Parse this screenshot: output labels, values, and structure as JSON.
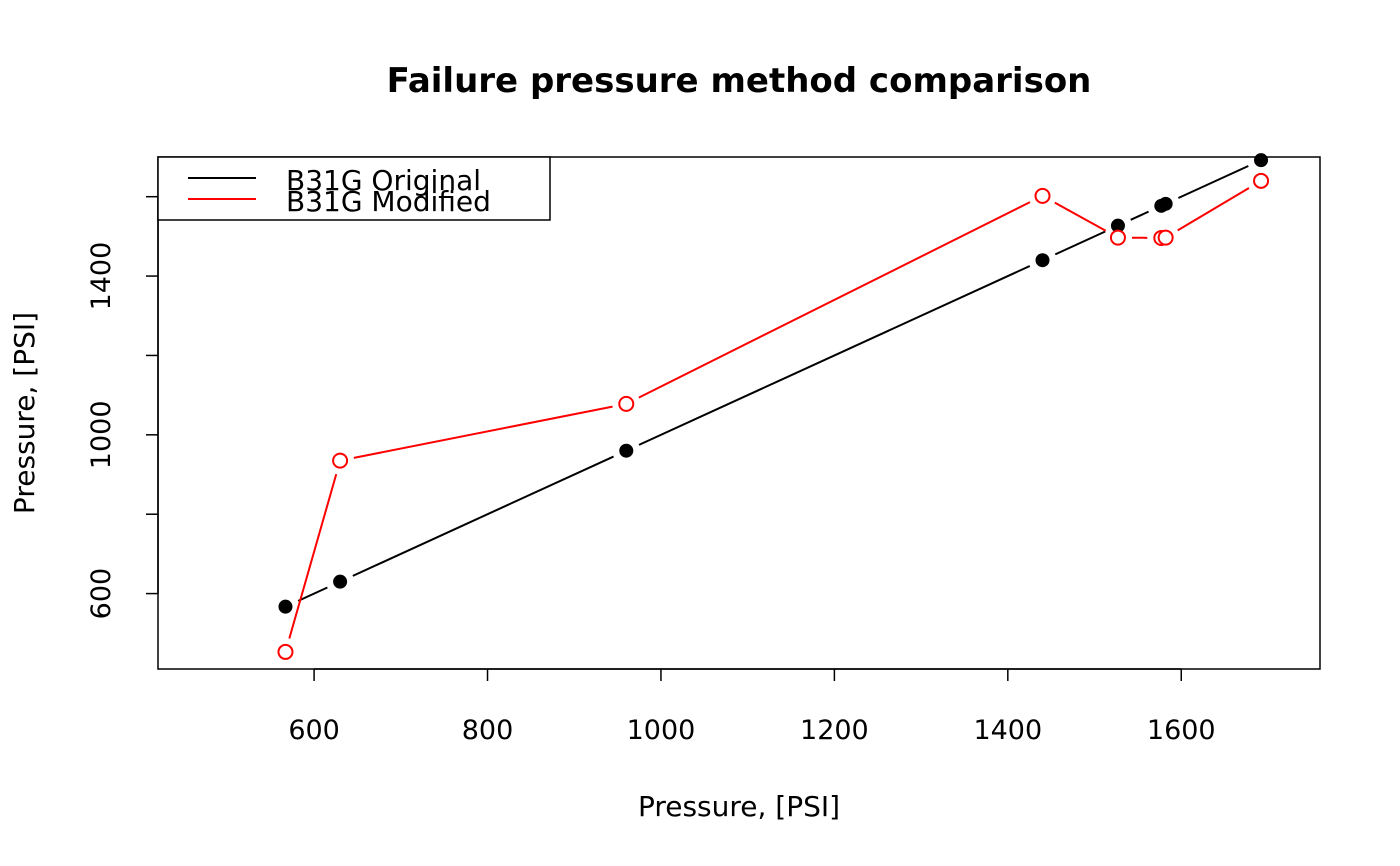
{
  "chart_data": {
    "type": "line",
    "title": "Failure pressure method comparison",
    "xlabel": "Pressure, [PSI]",
    "ylabel": "Pressure, [PSI]",
    "xlim": [
      420,
      1760
    ],
    "ylim": [
      410,
      1700
    ],
    "x_ticks": [
      600,
      800,
      1000,
      1200,
      1400,
      1600
    ],
    "y_ticks": [
      600,
      800,
      1000,
      1200,
      1400,
      1600
    ],
    "y_tick_labels_shown": [
      600,
      1000,
      1400
    ],
    "grid": false,
    "legend_position": "top-left",
    "series": [
      {
        "name": "B31G Original",
        "color": "#000000",
        "marker": "filled-circle",
        "x": [
          567,
          630,
          960,
          1440,
          1527,
          1577,
          1582,
          1692
        ],
        "y": [
          567,
          630,
          960,
          1440,
          1527,
          1577,
          1582,
          1692
        ]
      },
      {
        "name": "B31G Modified",
        "color": "#ff0000",
        "marker": "open-circle",
        "x": [
          567,
          630,
          960,
          1440,
          1527,
          1577,
          1582,
          1692
        ],
        "y": [
          453,
          935,
          1078,
          1602,
          1497,
          1496,
          1497,
          1640
        ]
      }
    ]
  }
}
